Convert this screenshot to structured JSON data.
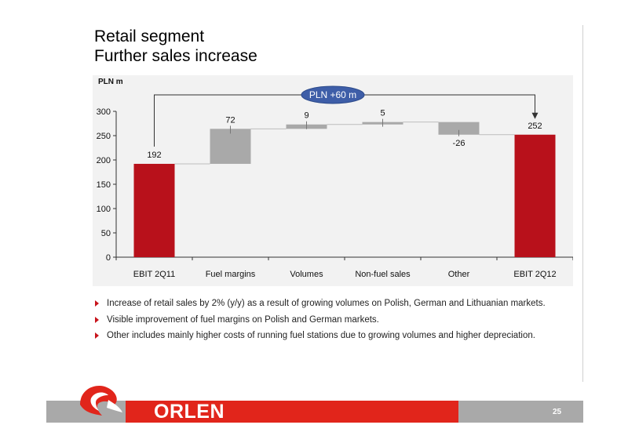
{
  "slide": {
    "title_line1": "Retail segment",
    "title_line2": "Further sales increase",
    "page_number": "25",
    "brand": "ORLEN"
  },
  "bullets": [
    "Increase of retail sales by 2% (y/y) as a result of growing volumes on Polish, German and Lithuanian markets.",
    "Visible improvement of fuel margins on Polish and German markets.",
    "Other includes mainly higher costs of running fuel stations due to growing volumes and higher depreciation."
  ],
  "colors": {
    "red": "#b8111b",
    "grey": "#a9a9a9",
    "callout": "#3e5ea8",
    "brand_red": "#e1251b"
  },
  "chart_data": {
    "type": "bar",
    "subtype": "waterfall",
    "unit_label": "PLN m",
    "categories": [
      "EBIT 2Q11",
      "Fuel margins",
      "Volumes",
      "Non-fuel sales",
      "Other",
      "EBIT 2Q12"
    ],
    "values": [
      192,
      72,
      9,
      5,
      -26,
      252
    ],
    "kinds": [
      "total",
      "delta",
      "delta",
      "delta",
      "delta",
      "total"
    ],
    "data_labels": [
      "192",
      "72",
      "9",
      "5",
      "-26",
      "252"
    ],
    "ylim": [
      0,
      300
    ],
    "yticks": [
      0,
      50,
      100,
      150,
      200,
      250,
      300
    ],
    "callout": "PLN +60 m"
  }
}
